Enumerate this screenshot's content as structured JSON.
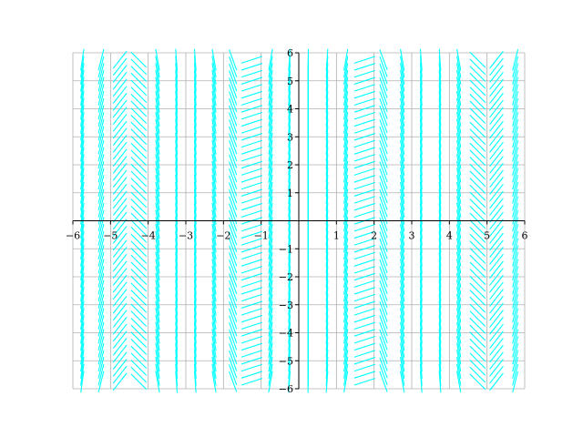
{
  "chart_data": {
    "type": "slope-field",
    "xlim": [
      -6,
      6
    ],
    "ylim": [
      -6,
      6
    ],
    "grid": true,
    "x_ticks": [
      -6,
      -5,
      -4,
      -3,
      -2,
      -1,
      1,
      2,
      3,
      4,
      5,
      6
    ],
    "y_ticks": [
      -6,
      -5,
      -4,
      -3,
      -2,
      -1,
      1,
      2,
      3,
      4,
      5,
      6
    ],
    "x_tick_labels": [
      "−6",
      "−5",
      "−4",
      "−3",
      "−2",
      "−1",
      "1",
      "2",
      "3",
      "4",
      "5",
      "6"
    ],
    "y_tick_labels": [
      "−6",
      "−5",
      "−4",
      "−3",
      "−2",
      "−1",
      "1",
      "2",
      "3",
      "4",
      "5",
      "6"
    ],
    "field_step": 0.5,
    "field_columns": [
      {
        "x": -6.0,
        "slope_angle_deg": 82
      },
      {
        "x": -5.5,
        "slope_angle_deg": 76
      },
      {
        "x": -5.0,
        "slope_angle_deg": 52
      },
      {
        "x": -4.5,
        "slope_angle_deg": -45
      },
      {
        "x": -4.0,
        "slope_angle_deg": -80
      },
      {
        "x": -3.5,
        "slope_angle_deg": -86
      },
      {
        "x": -3.0,
        "slope_angle_deg": -86
      },
      {
        "x": -2.5,
        "slope_angle_deg": -80
      },
      {
        "x": -2.0,
        "slope_angle_deg": -70
      },
      {
        "x": -1.5,
        "slope_angle_deg": 18
      },
      {
        "x": -1.0,
        "slope_angle_deg": 80
      },
      {
        "x": -0.5,
        "slope_angle_deg": 86
      },
      {
        "x": 0.0,
        "slope_angle_deg": 89
      },
      {
        "x": 0.5,
        "slope_angle_deg": 86
      },
      {
        "x": 1.0,
        "slope_angle_deg": 80
      },
      {
        "x": 1.5,
        "slope_angle_deg": 18
      },
      {
        "x": 2.0,
        "slope_angle_deg": -70
      },
      {
        "x": 2.5,
        "slope_angle_deg": -80
      },
      {
        "x": 3.0,
        "slope_angle_deg": -86
      },
      {
        "x": 3.5,
        "slope_angle_deg": -86
      },
      {
        "x": 4.0,
        "slope_angle_deg": -80
      },
      {
        "x": 4.5,
        "slope_angle_deg": -45
      },
      {
        "x": 5.0,
        "slope_angle_deg": 52
      },
      {
        "x": 5.5,
        "slope_angle_deg": 76
      }
    ],
    "colors": {
      "field": "#00ffff",
      "grid": "#b0b0b0",
      "axes": "#000000"
    }
  }
}
